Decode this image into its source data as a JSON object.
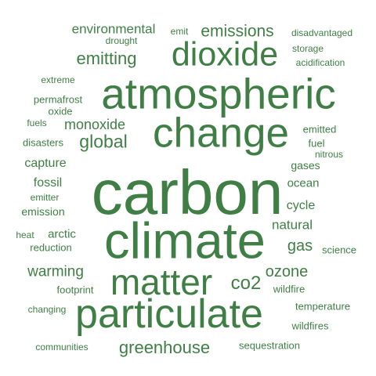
{
  "wordcloud": {
    "color": "#3f7f45",
    "words": [
      {
        "text": "carbon"
      },
      {
        "text": "climate"
      },
      {
        "text": "atmospheric"
      },
      {
        "text": "change"
      },
      {
        "text": "particulate"
      },
      {
        "text": "matter"
      },
      {
        "text": "dioxide"
      },
      {
        "text": "greenhouse"
      },
      {
        "text": "emitting"
      },
      {
        "text": "emissions"
      },
      {
        "text": "environmental"
      },
      {
        "text": "global"
      },
      {
        "text": "monoxide"
      },
      {
        "text": "co2"
      },
      {
        "text": "ozone"
      },
      {
        "text": "gas"
      },
      {
        "text": "warming"
      },
      {
        "text": "natural"
      },
      {
        "text": "cycle"
      },
      {
        "text": "ocean"
      },
      {
        "text": "gases"
      },
      {
        "text": "capture"
      },
      {
        "text": "fossil"
      },
      {
        "text": "emission"
      },
      {
        "text": "arctic"
      },
      {
        "text": "disasters"
      },
      {
        "text": "fuel"
      },
      {
        "text": "emitted"
      },
      {
        "text": "nitrous"
      },
      {
        "text": "emit"
      },
      {
        "text": "drought"
      },
      {
        "text": "disadvantaged"
      },
      {
        "text": "storage"
      },
      {
        "text": "acidification"
      },
      {
        "text": "extreme"
      },
      {
        "text": "permafrost"
      },
      {
        "text": "oxide"
      },
      {
        "text": "fuels"
      },
      {
        "text": "emitter"
      },
      {
        "text": "heat"
      },
      {
        "text": "reduction"
      },
      {
        "text": "science"
      },
      {
        "text": "footprint"
      },
      {
        "text": "wildfire"
      },
      {
        "text": "changing"
      },
      {
        "text": "temperature"
      },
      {
        "text": "wildfires"
      },
      {
        "text": "communities"
      },
      {
        "text": "sequestration"
      }
    ]
  }
}
